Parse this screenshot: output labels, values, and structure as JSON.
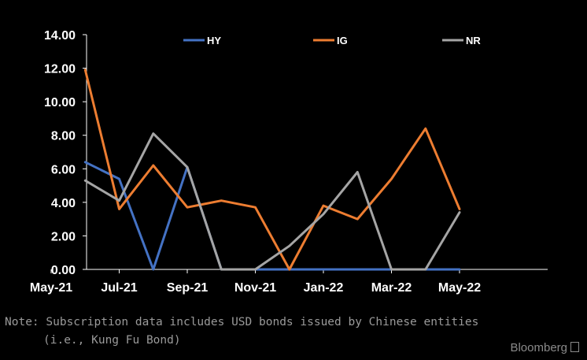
{
  "chart_data": {
    "type": "line",
    "x": [
      "May-21",
      "Jun-21",
      "Jul-21",
      "Aug-21",
      "Sep-21",
      "Oct-21",
      "Nov-21",
      "Dec-21",
      "Jan-22",
      "Feb-22",
      "Mar-22",
      "Apr-22",
      "May-22"
    ],
    "xtick_labels": [
      "May-21",
      "Jul-21",
      "Sep-21",
      "Nov-21",
      "Jan-22",
      "Mar-22",
      "May-22"
    ],
    "ytick_labels": [
      "0.00",
      "2.00",
      "4.00",
      "6.00",
      "8.00",
      "10.00",
      "12.00",
      "14.00"
    ],
    "ylim": [
      0,
      14
    ],
    "grid": false,
    "legend_position": "top",
    "series": [
      {
        "name": "HY",
        "color": "#4472c4",
        "points": [
          [
            "Jun-21",
            6.4
          ],
          [
            "Jul-21",
            5.4
          ],
          [
            "Aug-21",
            0.0
          ],
          [
            "Sep-21",
            6.1
          ],
          [
            "Oct-21",
            0.0
          ],
          [
            "Nov-21",
            0.0
          ],
          [
            "Dec-21",
            0.0
          ],
          [
            "Jan-22",
            0.0
          ],
          [
            "Feb-22",
            0.0
          ],
          [
            "Mar-22",
            0.0
          ],
          [
            "Apr-22",
            0.0
          ],
          [
            "May-22",
            0.0
          ]
        ]
      },
      {
        "name": "IG",
        "color": "#ed7d31",
        "points": [
          [
            "Jun-21",
            11.9
          ],
          [
            "Jul-21",
            3.6
          ],
          [
            "Aug-21",
            6.2
          ],
          [
            "Sep-21",
            3.7
          ],
          [
            "Oct-21",
            4.1
          ],
          [
            "Nov-21",
            3.7
          ],
          [
            "Dec-21",
            0.0
          ],
          [
            "Jan-22",
            3.8
          ],
          [
            "Feb-22",
            3.0
          ],
          [
            "Mar-22",
            5.4
          ],
          [
            "Apr-22",
            8.4
          ],
          [
            "May-22",
            3.6
          ]
        ]
      },
      {
        "name": "NR",
        "color": "#a5a5a5",
        "points": [
          [
            "Jun-21",
            5.3
          ],
          [
            "Jul-21",
            4.1
          ],
          [
            "Aug-21",
            8.1
          ],
          [
            "Sep-21",
            6.1
          ],
          [
            "Oct-21",
            0.0
          ],
          [
            "Nov-21",
            0.0
          ],
          [
            "Dec-21",
            1.4
          ],
          [
            "Jan-22",
            3.3
          ],
          [
            "Feb-22",
            5.8
          ],
          [
            "Mar-22",
            0.0
          ],
          [
            "Apr-22",
            0.0
          ],
          [
            "May-22",
            3.4
          ]
        ]
      }
    ]
  },
  "note": {
    "line1": "Note: Subscription data includes USD bonds issued by Chinese entities",
    "line2": "(i.e., Kung Fu Bond)"
  },
  "brand": "Bloomberg"
}
